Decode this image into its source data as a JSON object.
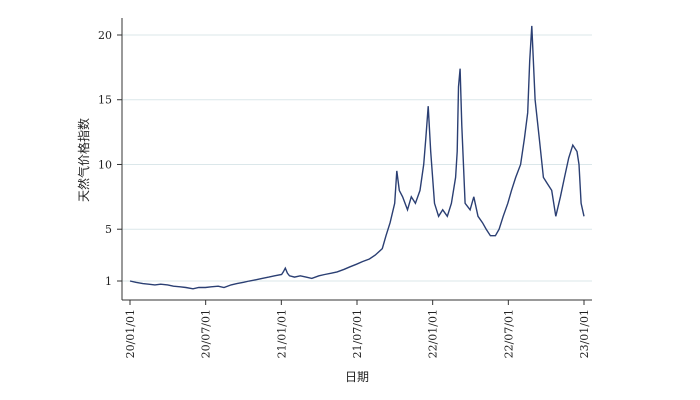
{
  "chart_data": {
    "type": "line",
    "title": "",
    "xlabel": "日期",
    "ylabel": "天然气价格指数",
    "x_ticks": [
      "20/01/01",
      "20/07/01",
      "21/01/01",
      "21/07/01",
      "22/01/01",
      "22/07/01",
      "23/01/01"
    ],
    "y_ticks": [
      1,
      5,
      10,
      15,
      20
    ],
    "xlim": [
      "2020-01-01",
      "2023-01-01"
    ],
    "ylim": [
      0,
      21
    ],
    "grid": "horizontal",
    "legend": "none",
    "line_color": "#2b3f73",
    "series": [
      {
        "x": [
          "2020-01-01",
          "2020-01-15",
          "2020-02-01",
          "2020-02-15",
          "2020-03-01",
          "2020-03-15",
          "2020-04-01",
          "2020-04-15",
          "2020-05-01",
          "2020-05-15",
          "2020-06-01",
          "2020-06-15",
          "2020-07-01",
          "2020-07-15",
          "2020-08-01",
          "2020-08-15",
          "2020-09-01",
          "2020-09-15",
          "2020-10-01",
          "2020-10-15",
          "2020-11-01",
          "2020-11-15",
          "2020-12-01",
          "2020-12-15",
          "2021-01-01",
          "2021-01-05",
          "2021-01-10",
          "2021-01-15",
          "2021-01-20",
          "2021-02-01",
          "2021-02-15",
          "2021-03-01",
          "2021-03-15",
          "2021-04-01",
          "2021-04-15",
          "2021-05-01",
          "2021-05-15",
          "2021-06-01",
          "2021-06-15",
          "2021-07-01",
          "2021-07-15",
          "2021-08-01",
          "2021-08-15",
          "2021-09-01",
          "2021-09-10",
          "2021-09-20",
          "2021-10-01",
          "2021-10-06",
          "2021-10-12",
          "2021-10-20",
          "2021-11-01",
          "2021-11-10",
          "2021-11-20",
          "2021-12-01",
          "2021-12-10",
          "2021-12-15",
          "2021-12-21",
          "2021-12-27",
          "2022-01-05",
          "2022-01-15",
          "2022-01-25",
          "2022-02-05",
          "2022-02-15",
          "2022-02-25",
          "2022-03-01",
          "2022-03-04",
          "2022-03-08",
          "2022-03-12",
          "2022-03-20",
          "2022-04-01",
          "2022-04-10",
          "2022-04-20",
          "2022-05-01",
          "2022-05-10",
          "2022-05-20",
          "2022-06-01",
          "2022-06-10",
          "2022-06-20",
          "2022-07-01",
          "2022-07-10",
          "2022-07-20",
          "2022-08-01",
          "2022-08-10",
          "2022-08-18",
          "2022-08-23",
          "2022-08-28",
          "2022-09-05",
          "2022-09-15",
          "2022-09-25",
          "2022-10-05",
          "2022-10-15",
          "2022-10-25",
          "2022-11-05",
          "2022-11-15",
          "2022-11-25",
          "2022-12-05",
          "2022-12-15",
          "2022-12-20",
          "2022-12-25",
          "2023-01-01"
        ],
        "y": [
          1.0,
          0.9,
          0.8,
          0.75,
          0.7,
          0.75,
          0.7,
          0.6,
          0.55,
          0.5,
          0.4,
          0.5,
          0.5,
          0.55,
          0.6,
          0.5,
          0.7,
          0.8,
          0.9,
          1.0,
          1.1,
          1.2,
          1.3,
          1.4,
          1.5,
          1.7,
          2.0,
          1.6,
          1.4,
          1.3,
          1.4,
          1.3,
          1.2,
          1.4,
          1.5,
          1.6,
          1.7,
          1.9,
          2.1,
          2.3,
          2.5,
          2.7,
          3.0,
          3.5,
          4.5,
          5.5,
          7.0,
          9.5,
          8.0,
          7.5,
          6.5,
          7.5,
          7.0,
          8.0,
          10.0,
          12.0,
          14.5,
          11.0,
          7.0,
          6.0,
          6.5,
          6.0,
          7.0,
          9.0,
          11.0,
          16.0,
          17.4,
          13.0,
          7.0,
          6.5,
          7.5,
          6.0,
          5.5,
          5.0,
          4.5,
          4.5,
          5.0,
          6.0,
          7.0,
          8.0,
          9.0,
          10.0,
          12.0,
          14.0,
          18.0,
          20.7,
          15.0,
          12.0,
          9.0,
          8.5,
          8.0,
          6.0,
          7.5,
          9.0,
          10.5,
          11.5,
          11.0,
          10.0,
          7.0,
          6.0
        ]
      }
    ]
  }
}
